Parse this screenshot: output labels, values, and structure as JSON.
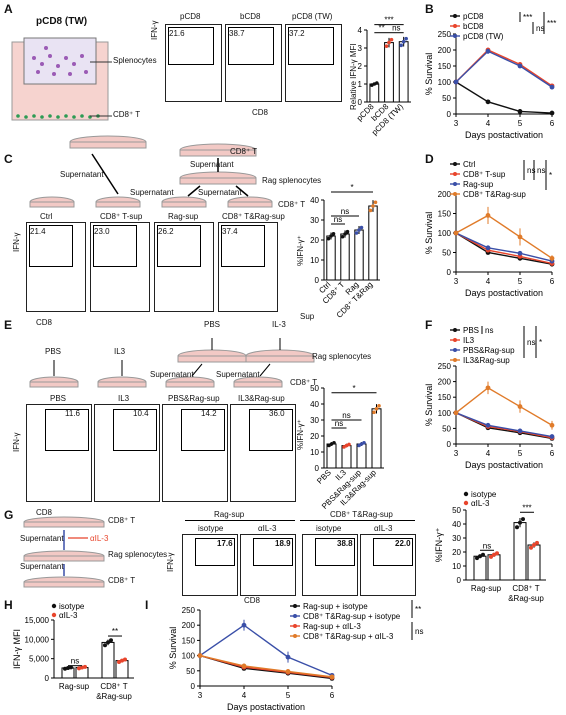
{
  "panels": {
    "A": {
      "label": "A",
      "well_title": "pCD8 (TW)",
      "well_labels": [
        "Splenocytes",
        "CD8⁺ T"
      ],
      "flow_titles": [
        "pCD8",
        "bCD8",
        "pCD8 (TW)"
      ],
      "flow_values": [
        "21.6",
        "38.7",
        "37.2"
      ],
      "ylabel": "IFN-γ",
      "xlabel": "CD8",
      "bar_ylabel": "Relative IFN-γ MFI",
      "bar_categories": [
        "pCD8",
        "bCD8",
        "pCD8 (TW)"
      ],
      "sig": [
        "***",
        "**",
        "ns"
      ]
    },
    "B": {
      "label": "B",
      "legend": [
        "pCD8",
        "bCD8",
        "pCD8 (TW)"
      ],
      "sig": [
        "***",
        "ns",
        "***"
      ],
      "ylabel": "% Survival",
      "xlabel": "Days postactivation"
    },
    "C": {
      "label": "C",
      "dish_labels": [
        "CD8⁺ T",
        "Rag splenocytes",
        "CD8⁺ T"
      ],
      "arrow_labels": [
        "Supernatant",
        "Supernatant",
        "Supernatant",
        "Supernatant"
      ],
      "flow_titles": [
        "Ctrl",
        "CD8⁺ T-sup",
        "Rag-sup",
        "CD8⁺ T&Rag-sup"
      ],
      "flow_values": [
        "21.4",
        "23.0",
        "26.2",
        "37.4"
      ],
      "ylabel": "IFN-γ",
      "xlabel": "CD8",
      "bar_ylabel": "%IFN-γ⁺",
      "bar_xprefix": "Sup",
      "bar_categories": [
        "Ctrl",
        "CD8⁺ T",
        "Rag",
        "CD8⁺ T&Rag"
      ],
      "sig": [
        "*",
        "ns",
        "ns"
      ]
    },
    "D": {
      "label": "D",
      "legend": [
        "Ctrl",
        "CD8⁺ T-sup",
        "Rag-sup",
        "CD8⁺ T&Rag-sup"
      ],
      "sig": [
        "ns",
        "ns",
        "*"
      ],
      "ylabel": "% Survival",
      "xlabel": "Days postactivation"
    },
    "E": {
      "label": "E",
      "top_labels": [
        "PBS",
        "IL-3"
      ],
      "dish_labels": [
        "Rag splenocytes",
        "CD8⁺ T"
      ],
      "arrow_labels": [
        "PBS",
        "IL3",
        "Supernatant",
        "Supernatant"
      ],
      "flow_titles": [
        "PBS",
        "IL3",
        "PBS&Rag-sup",
        "IL3&Rag-sup"
      ],
      "flow_values": [
        "11.6",
        "10.4",
        "14.2",
        "36.0"
      ],
      "ylabel": "IFN-γ",
      "xlabel": "CD8",
      "bar_ylabel": "%IFN-γ⁺",
      "bar_categories": [
        "PBS",
        "IL3",
        "PBS&Rag-sup",
        "IL3&Rag-sup"
      ],
      "sig": [
        "*",
        "ns",
        "ns"
      ]
    },
    "F": {
      "label": "F",
      "legend": [
        "PBS",
        "IL3",
        "PBS&Rag-sup",
        "IL3&Rag-sup"
      ],
      "sig": [
        "ns",
        "ns",
        "*"
      ],
      "ylabel": "% Survival",
      "xlabel": "Days postactivation"
    },
    "G": {
      "label": "G",
      "dish_labels": [
        "CD8⁺ T",
        "Rag splenocytes",
        "CD8⁺ T"
      ],
      "arrow_labels": [
        "Supernatant",
        "αIL-3",
        "Supernatant"
      ],
      "group_titles": [
        "Rag-sup",
        "CD8⁺ T&Rag-sup"
      ],
      "flow_titles": [
        "isotype",
        "αIL-3",
        "isotype",
        "αIL-3"
      ],
      "flow_values": [
        "17.6",
        "18.9",
        "38.8",
        "22.0"
      ],
      "ylabel": "IFN-γ",
      "xlabel": "CD8",
      "bar_ylabel": "%IFN-γ⁺",
      "legend": [
        "isotype",
        "αIL-3"
      ],
      "bar_groups": [
        "Rag-sup",
        "CD8⁺ T",
        "&Rag-sup"
      ],
      "sig": [
        "ns",
        "***"
      ]
    },
    "H": {
      "label": "H",
      "legend": [
        "isotype",
        "αIL-3"
      ],
      "ylabel": "IFN-γ MFI",
      "bar_groups": [
        "Rag-sup",
        "CD8⁺ T",
        "&Rag-sup"
      ],
      "sig": [
        "ns",
        "**"
      ]
    },
    "I": {
      "label": "I",
      "legend": [
        "Rag-sup + isotype",
        "CD8⁺ T&Rag-sup + isotype",
        "Rag-sup + αIL-3",
        "CD8⁺ T&Rag-sup + αIL-3"
      ],
      "sig": [
        "**",
        "ns"
      ],
      "ylabel": "% Survival",
      "xlabel": "Days postactivation"
    }
  },
  "colors": {
    "black": "#111111",
    "red": "#e8452c",
    "blue": "#3a4fa8",
    "orange": "#e07b2a",
    "bar": "#ffffff",
    "dish": "#f2c9c5"
  },
  "chart_data": [
    {
      "type": "bar",
      "panel": "A",
      "categories": [
        "pCD8",
        "bCD8",
        "pCD8 (TW)"
      ],
      "values": [
        1.0,
        3.3,
        3.35
      ],
      "ylim": [
        0,
        4
      ],
      "yticks": [
        0,
        1,
        2,
        3,
        4
      ]
    },
    {
      "type": "line",
      "panel": "B",
      "x": [
        3,
        4,
        5,
        6
      ],
      "xticks": [
        3,
        4,
        5,
        6
      ],
      "ylim": [
        0,
        250
      ],
      "yticks": [
        0,
        50,
        100,
        150,
        200,
        250
      ],
      "series": [
        {
          "name": "pCD8",
          "values": [
            100,
            38,
            8,
            3
          ]
        },
        {
          "name": "bCD8",
          "values": [
            100,
            200,
            155,
            88
          ]
        },
        {
          "name": "pCD8 (TW)",
          "values": [
            100,
            196,
            150,
            84
          ]
        }
      ]
    },
    {
      "type": "bar",
      "panel": "C",
      "categories": [
        "Ctrl",
        "CD8⁺ T",
        "Rag",
        "CD8⁺ T&Rag"
      ],
      "values": [
        22,
        23,
        25,
        37
      ],
      "ylim": [
        0,
        40
      ],
      "yticks": [
        0,
        10,
        20,
        30,
        40
      ]
    },
    {
      "type": "line",
      "panel": "D",
      "x": [
        3,
        4,
        5,
        6
      ],
      "xticks": [
        3,
        4,
        5,
        6
      ],
      "ylim": [
        0,
        200
      ],
      "yticks": [
        0,
        50,
        100,
        150,
        200
      ],
      "series": [
        {
          "name": "Ctrl",
          "values": [
            100,
            50,
            35,
            20
          ]
        },
        {
          "name": "CD8⁺ T-sup",
          "values": [
            100,
            56,
            40,
            22
          ]
        },
        {
          "name": "Rag-sup",
          "values": [
            100,
            62,
            48,
            28
          ]
        },
        {
          "name": "CD8⁺ T&Rag-sup",
          "values": [
            100,
            145,
            90,
            35
          ]
        }
      ]
    },
    {
      "type": "bar",
      "panel": "E",
      "categories": [
        "PBS",
        "IL3",
        "PBS&Rag-sup",
        "IL3&Rag-sup"
      ],
      "values": [
        15,
        14,
        15,
        37
      ],
      "ylim": [
        0,
        50
      ],
      "yticks": [
        0,
        10,
        20,
        30,
        40,
        50
      ]
    },
    {
      "type": "line",
      "panel": "F",
      "x": [
        3,
        4,
        5,
        6
      ],
      "xticks": [
        3,
        4,
        5,
        6
      ],
      "ylim": [
        0,
        250
      ],
      "yticks": [
        0,
        50,
        100,
        150,
        200,
        250
      ],
      "series": [
        {
          "name": "PBS",
          "values": [
            100,
            52,
            36,
            18
          ]
        },
        {
          "name": "IL3",
          "values": [
            100,
            56,
            40,
            20
          ]
        },
        {
          "name": "PBS&Rag-sup",
          "values": [
            100,
            60,
            42,
            24
          ]
        },
        {
          "name": "IL3&Rag-sup",
          "values": [
            100,
            180,
            120,
            60
          ]
        }
      ]
    },
    {
      "type": "bar",
      "panel": "G",
      "categories": [
        "Rag-sup",
        "CD8⁺ T&Rag-sup"
      ],
      "ylim": [
        0,
        50
      ],
      "yticks": [
        0,
        10,
        20,
        30,
        40,
        50
      ],
      "series": [
        {
          "name": "isotype",
          "values": [
            17,
            41
          ]
        },
        {
          "name": "αIL-3",
          "values": [
            18,
            25
          ]
        }
      ]
    },
    {
      "type": "bar",
      "panel": "H",
      "categories": [
        "Rag-sup",
        "CD8⁺ T&Rag-sup"
      ],
      "ylim": [
        0,
        15000
      ],
      "yticks": [
        0,
        5000,
        10000,
        15000
      ],
      "ytick_labels": [
        "0",
        "5,000",
        "10,000",
        "15,000"
      ],
      "series": [
        {
          "name": "isotype",
          "values": [
            2600,
            9200
          ]
        },
        {
          "name": "αIL-3",
          "values": [
            2700,
            4500
          ]
        }
      ]
    },
    {
      "type": "line",
      "panel": "I",
      "x": [
        3,
        4,
        5,
        6
      ],
      "xticks": [
        3,
        4,
        5,
        6
      ],
      "ylim": [
        0,
        250
      ],
      "yticks": [
        0,
        50,
        100,
        150,
        200,
        250
      ],
      "series": [
        {
          "name": "Rag-sup + isotype",
          "values": [
            100,
            58,
            42,
            25
          ]
        },
        {
          "name": "CD8⁺ T&Rag-sup + isotype",
          "values": [
            100,
            200,
            95,
            35
          ]
        },
        {
          "name": "Rag-sup + αIL-3",
          "values": [
            100,
            62,
            45,
            28
          ]
        },
        {
          "name": "CD8⁺ T&Rag-sup + αIL-3",
          "values": [
            100,
            66,
            48,
            30
          ]
        }
      ]
    }
  ]
}
